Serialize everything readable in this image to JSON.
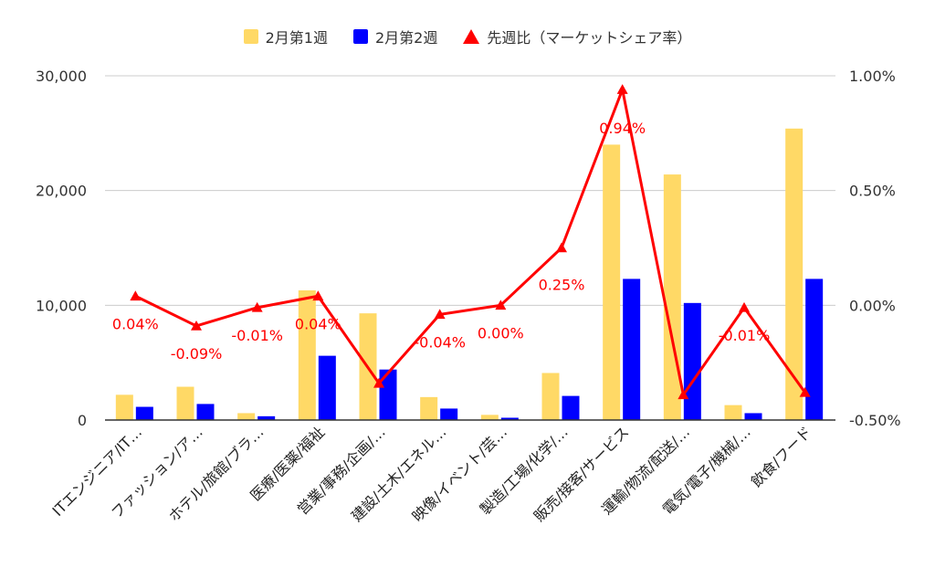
{
  "chart_data": {
    "type": "bar",
    "categories": [
      "ITエンジニア/IT…",
      "ファッション/ア…",
      "ホテル/旅館/ブラ…",
      "医療/医薬/福祉",
      "営業/事務/企画/…",
      "建設/土木/エネル…",
      "映像/イベント/芸…",
      "製造/工場/化学/…",
      "販売/接客/サービス",
      "運輸/物流/配送/…",
      "電気/電子/機械/…",
      "飲食/フード"
    ],
    "series": [
      {
        "name": "2月第1週",
        "axis": "left",
        "color": "#ffd966",
        "values": [
          2200,
          2900,
          600,
          11300,
          9300,
          2000,
          450,
          4100,
          24000,
          21400,
          1300,
          25400
        ]
      },
      {
        "name": "2月第2週",
        "axis": "left",
        "color": "#0000ff",
        "values": [
          1150,
          1400,
          330,
          5600,
          4400,
          1000,
          200,
          2100,
          12300,
          10200,
          600,
          12300
        ]
      },
      {
        "name": "先週比（マーケットシェア率）",
        "axis": "right",
        "type": "line",
        "color": "#ff0000",
        "values": [
          0.04,
          -0.09,
          -0.01,
          0.04,
          -0.34,
          -0.04,
          0.0,
          0.25,
          0.94,
          -0.39,
          -0.01,
          -0.38
        ],
        "labels": [
          "0.04%",
          "-0.09%",
          "-0.01%",
          "0.04%",
          "",
          "-0.04%",
          "0.00%",
          "0.25%",
          "0.94%",
          "",
          "-0.01%",
          ""
        ]
      }
    ],
    "left_axis": {
      "ylim": [
        0,
        30000
      ],
      "ticks": [
        0,
        10000,
        20000,
        30000
      ],
      "tick_labels": [
        "0",
        "10,000",
        "20,000",
        "30,000"
      ]
    },
    "right_axis": {
      "ylim": [
        -0.5,
        1.0
      ],
      "ticks": [
        -0.5,
        0.0,
        0.5,
        1.0
      ],
      "tick_labels": [
        "-0.50%",
        "0.00%",
        "0.50%",
        "1.00%"
      ]
    },
    "grid": true,
    "legend_position": "top-center"
  }
}
